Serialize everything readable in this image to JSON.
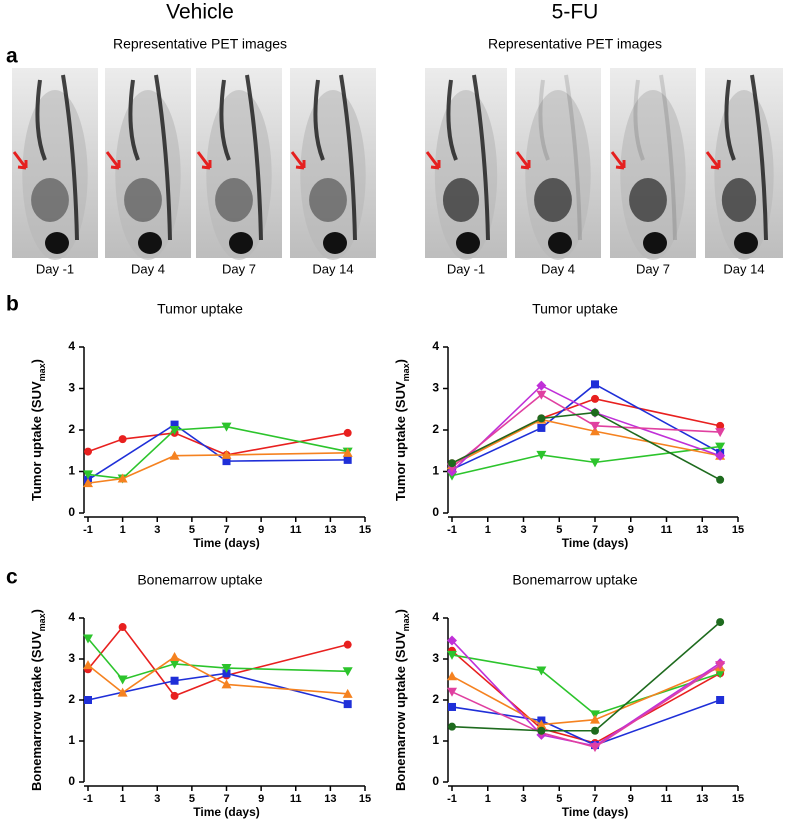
{
  "headings": [
    "Vehicle",
    "5-FU"
  ],
  "panel_letters": [
    "a",
    "b",
    "c"
  ],
  "pet": [
    {
      "title": "Representative PET images",
      "days": [
        "Day -1",
        "Day 4",
        "Day 7",
        "Day 14"
      ]
    },
    {
      "title": "Representative PET images",
      "days": [
        "Day -1",
        "Day 4",
        "Day 7",
        "Day 14"
      ]
    }
  ],
  "chart_data": [
    {
      "type": "line",
      "title": "Tumor uptake",
      "ylabel": [
        "Tumor uptake (SUV",
        "max",
        ")"
      ],
      "xlabel": "Time (days)",
      "xlim": [
        -1,
        15
      ],
      "xticks": [
        -1,
        1,
        3,
        5,
        7,
        9,
        11,
        13,
        15
      ],
      "ylim": [
        0,
        4
      ],
      "yticks": [
        0,
        1,
        2,
        3,
        4
      ],
      "series": [
        {
          "color": "#e8201f",
          "marker": "circle",
          "x": [
            -1,
            1,
            4,
            7,
            14
          ],
          "values": [
            1.48,
            1.78,
            1.93,
            1.4,
            1.93
          ]
        },
        {
          "color": "#1f2fd8",
          "marker": "square",
          "x": [
            -1,
            4,
            7,
            14
          ],
          "values": [
            0.8,
            2.13,
            1.25,
            1.28
          ]
        },
        {
          "color": "#2cc42c",
          "marker": "triangle-down",
          "x": [
            -1,
            1,
            4,
            7,
            14
          ],
          "values": [
            0.93,
            0.83,
            2.0,
            2.08,
            1.48
          ]
        },
        {
          "color": "#f58220",
          "marker": "triangle-up",
          "x": [
            -1,
            1,
            4,
            7,
            14
          ],
          "values": [
            0.72,
            0.83,
            1.38,
            1.4,
            1.45
          ]
        }
      ]
    },
    {
      "type": "line",
      "title": "Tumor uptake",
      "ylabel": [
        "Tumor uptake (SUV",
        "max",
        ")"
      ],
      "xlabel": "Time (days)",
      "xlim": [
        -1,
        15
      ],
      "xticks": [
        -1,
        1,
        3,
        5,
        7,
        9,
        11,
        13,
        15
      ],
      "ylim": [
        0,
        4
      ],
      "yticks": [
        0,
        1,
        2,
        3,
        4
      ],
      "series": [
        {
          "color": "#e8201f",
          "marker": "circle",
          "x": [
            -1,
            4,
            7,
            14
          ],
          "values": [
            1.2,
            2.28,
            2.75,
            2.1
          ]
        },
        {
          "color": "#1f2fd8",
          "marker": "square",
          "x": [
            -1,
            4,
            7,
            14
          ],
          "values": [
            1.05,
            2.05,
            3.1,
            1.45
          ]
        },
        {
          "color": "#2cc42c",
          "marker": "triangle-down",
          "x": [
            -1,
            4,
            7,
            14
          ],
          "values": [
            0.9,
            1.4,
            1.22,
            1.6
          ]
        },
        {
          "color": "#f58220",
          "marker": "triangle-up",
          "x": [
            -1,
            4,
            7,
            14
          ],
          "values": [
            1.15,
            2.25,
            1.97,
            1.38
          ]
        },
        {
          "color": "#c030d8",
          "marker": "diamond",
          "x": [
            -1,
            4,
            7,
            14
          ],
          "values": [
            1.0,
            3.07,
            2.42,
            1.38
          ]
        },
        {
          "color": "#e040a0",
          "marker": "triangle-down",
          "x": [
            -1,
            4,
            7,
            14
          ],
          "values": [
            1.1,
            2.85,
            2.1,
            1.95
          ]
        },
        {
          "color": "#1e6b1e",
          "marker": "circle",
          "x": [
            -1,
            4,
            7,
            14
          ],
          "values": [
            1.2,
            2.28,
            2.42,
            0.8
          ]
        }
      ]
    },
    {
      "type": "line",
      "title": "Bonemarrow uptake",
      "ylabel": [
        "Bonemarrow uptake (SUV",
        "max",
        ")"
      ],
      "xlabel": "Time (days)",
      "xlim": [
        -1,
        15
      ],
      "xticks": [
        -1,
        1,
        3,
        5,
        7,
        9,
        11,
        13,
        15
      ],
      "ylim": [
        0,
        4
      ],
      "yticks": [
        0,
        1,
        2,
        3,
        4
      ],
      "series": [
        {
          "color": "#e8201f",
          "marker": "circle",
          "x": [
            -1,
            1,
            4,
            7,
            14
          ],
          "values": [
            2.75,
            3.78,
            2.1,
            2.6,
            3.35
          ]
        },
        {
          "color": "#1f2fd8",
          "marker": "square",
          "x": [
            -1,
            4,
            7,
            14
          ],
          "values": [
            2.0,
            2.47,
            2.65,
            1.9
          ]
        },
        {
          "color": "#2cc42c",
          "marker": "triangle-down",
          "x": [
            -1,
            1,
            4,
            7,
            14
          ],
          "values": [
            3.5,
            2.5,
            2.88,
            2.78,
            2.7
          ]
        },
        {
          "color": "#f58220",
          "marker": "triangle-up",
          "x": [
            -1,
            1,
            4,
            7,
            14
          ],
          "values": [
            2.85,
            2.18,
            3.05,
            2.38,
            2.15
          ]
        }
      ]
    },
    {
      "type": "line",
      "title": "Bonemarrow uptake",
      "ylabel": [
        "Bonemarrow uptake (SUV",
        "max",
        ")"
      ],
      "xlabel": "Time (days)",
      "xlim": [
        -1,
        15
      ],
      "xticks": [
        -1,
        1,
        3,
        5,
        7,
        9,
        11,
        13,
        15
      ],
      "ylim": [
        0,
        4
      ],
      "yticks": [
        0,
        1,
        2,
        3,
        4
      ],
      "series": [
        {
          "color": "#e8201f",
          "marker": "circle",
          "x": [
            -1,
            4,
            7,
            14
          ],
          "values": [
            3.2,
            1.3,
            0.95,
            2.65
          ]
        },
        {
          "color": "#1f2fd8",
          "marker": "square",
          "x": [
            -1,
            4,
            7,
            14
          ],
          "values": [
            1.83,
            1.5,
            0.9,
            2.0
          ]
        },
        {
          "color": "#2cc42c",
          "marker": "triangle-down",
          "x": [
            -1,
            4,
            7,
            14
          ],
          "values": [
            3.1,
            2.72,
            1.65,
            2.65
          ]
        },
        {
          "color": "#f58220",
          "marker": "triangle-up",
          "x": [
            -1,
            4,
            7,
            14
          ],
          "values": [
            2.58,
            1.4,
            1.52,
            2.8
          ]
        },
        {
          "color": "#c030d8",
          "marker": "diamond",
          "x": [
            -1,
            4,
            7,
            14
          ],
          "values": [
            3.45,
            1.15,
            0.88,
            2.9
          ]
        },
        {
          "color": "#e040a0",
          "marker": "triangle-down",
          "x": [
            -1,
            4,
            7,
            14
          ],
          "values": [
            2.2,
            1.2,
            0.85,
            2.85
          ]
        },
        {
          "color": "#1e6b1e",
          "marker": "circle",
          "x": [
            -1,
            4,
            7,
            14
          ],
          "values": [
            1.35,
            1.25,
            1.25,
            3.9
          ]
        }
      ]
    }
  ]
}
